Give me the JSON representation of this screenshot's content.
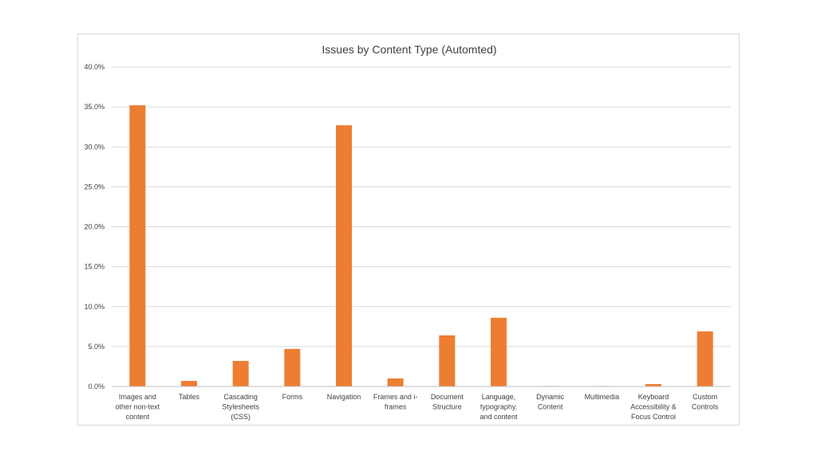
{
  "chart_data": {
    "type": "bar",
    "title": "Issues by Content Type (Automted)",
    "xlabel": "",
    "ylabel": "",
    "ylim": [
      0,
      40
    ],
    "y_ticks": [
      "0.0%",
      "5.0%",
      "10.0%",
      "15.0%",
      "20.0%",
      "25.0%",
      "30.0%",
      "35.0%",
      "40.0%"
    ],
    "y_tick_values": [
      0,
      5,
      10,
      15,
      20,
      25,
      30,
      35,
      40
    ],
    "categories": [
      [
        "Images and",
        "other non-text",
        "content"
      ],
      [
        "Tables"
      ],
      [
        "Cascading",
        "Stylesheets",
        "(CSS)"
      ],
      [
        "Forms"
      ],
      [
        "Navigation"
      ],
      [
        "Frames and i-",
        "frames"
      ],
      [
        "Document",
        "Structure"
      ],
      [
        "Language,",
        "typography,",
        "and content"
      ],
      [
        "Dynamic",
        "Content"
      ],
      [
        "Multimedia"
      ],
      [
        "Keyboard",
        "Accessibility &",
        "Focus Control"
      ],
      [
        "Custom",
        "Controls"
      ]
    ],
    "values": [
      35.2,
      0.7,
      3.2,
      4.7,
      32.7,
      1.0,
      6.4,
      8.6,
      0.05,
      0.05,
      0.3,
      6.9
    ],
    "grid": true,
    "legend": "none",
    "colors": {
      "bar": "#ED7D31",
      "grid": "#d9d9d9",
      "axis": "#bfbfbf",
      "text": "#404040"
    }
  }
}
